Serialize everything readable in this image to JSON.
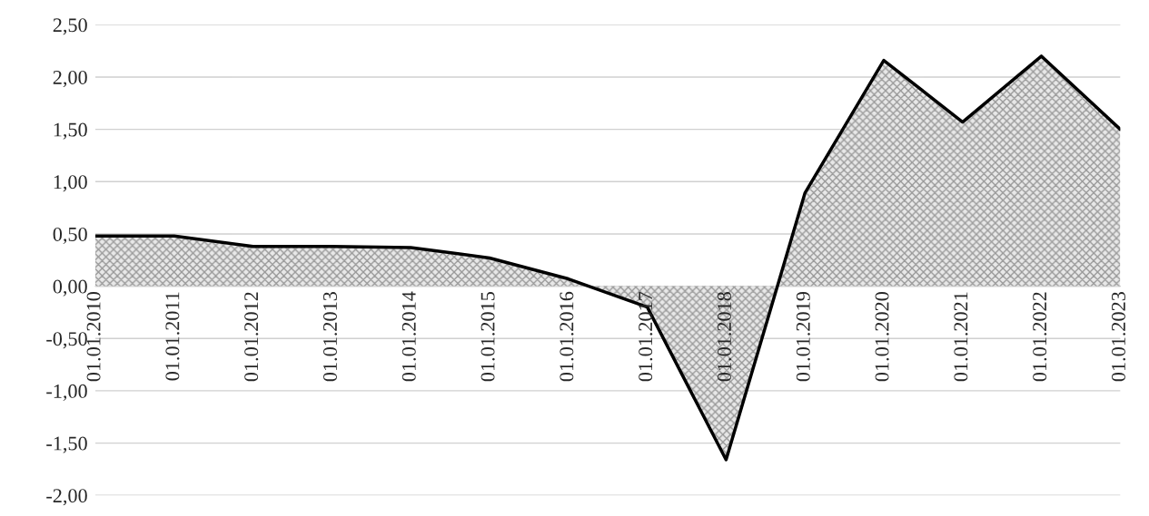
{
  "chart_data": {
    "type": "area",
    "categories": [
      "01.01.2010",
      "01.01.2011",
      "01.01.2012",
      "01.01.2013",
      "01.01.2014",
      "01.01.2015",
      "01.01.2016",
      "01.01.2017",
      "01.01.2018",
      "01.01.2019",
      "01.01.2020",
      "01.01.2021",
      "01.01.2022",
      "01.01.2023"
    ],
    "series": [
      {
        "color": "#000000",
        "values": [
          0.48,
          0.48,
          0.38,
          0.38,
          0.37,
          0.27,
          0.07,
          -0.2,
          -1.66,
          0.89,
          2.16,
          1.57,
          2.2,
          1.5
        ]
      }
    ],
    "ylim": [
      -2,
      2.5
    ],
    "yticks": [
      {
        "value": -2,
        "label": "-2,00"
      },
      {
        "value": -1.5,
        "label": "-1,50"
      },
      {
        "value": -1,
        "label": "-1,00"
      },
      {
        "value": -0.5,
        "label": "-0,50"
      },
      {
        "value": 0,
        "label": "0,00"
      },
      {
        "value": 0.5,
        "label": "0,50"
      },
      {
        "value": 1,
        "label": "1,00"
      },
      {
        "value": 1.5,
        "label": "1,50"
      },
      {
        "value": 2,
        "label": "2,00"
      },
      {
        "value": 2.5,
        "label": "2,50"
      }
    ],
    "grid": "y",
    "legend": false
  }
}
